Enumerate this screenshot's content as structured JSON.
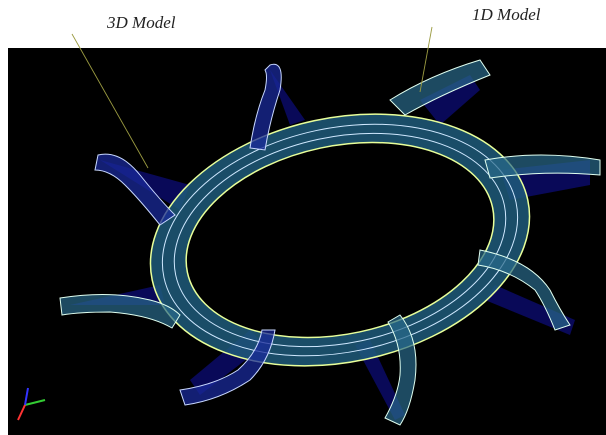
{
  "annotations": [
    {
      "text": "3D Model"
    },
    {
      "text": "1D Model"
    }
  ]
}
